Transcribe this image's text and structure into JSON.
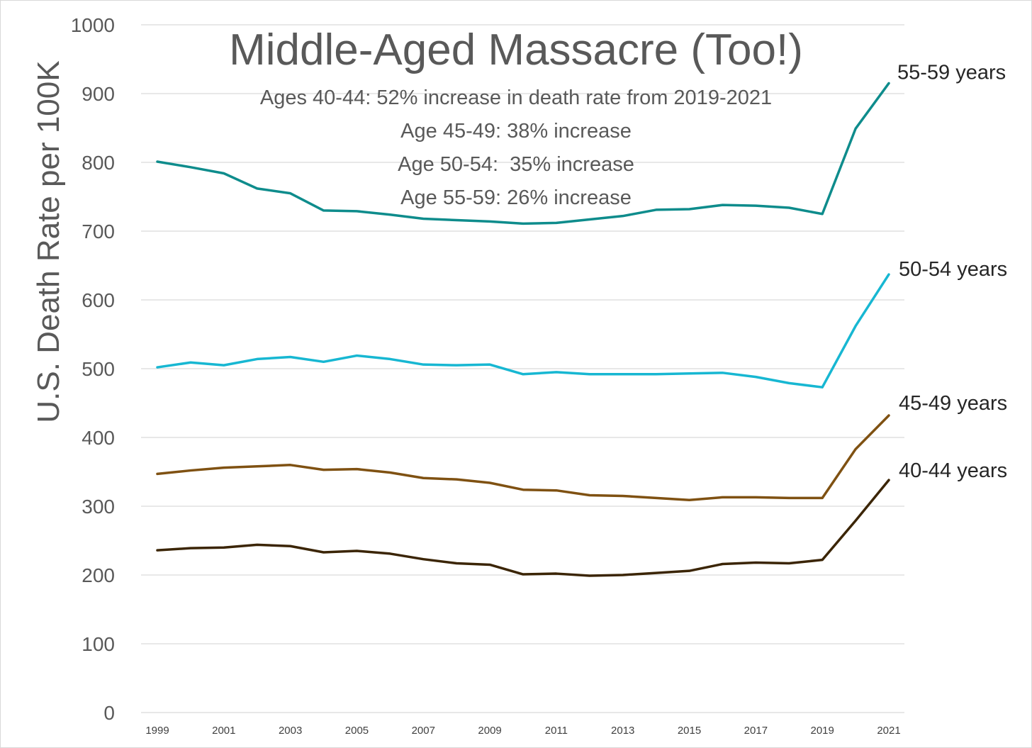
{
  "chart_data": {
    "type": "line",
    "title": "Middle-Aged Massacre (Too!)",
    "subtitle_lines": [
      "Ages 40-44: 52% increase in death rate from 2019-2021",
      "Age 45-49: 38% increase",
      "Age 50-54:  35% increase",
      "Age 55-59: 26% increase"
    ],
    "ylabel": "U.S. Death Rate per 100K",
    "xlabel": "",
    "ylim": [
      0,
      1000
    ],
    "y_ticks": [
      0,
      100,
      200,
      300,
      400,
      500,
      600,
      700,
      800,
      900,
      1000
    ],
    "grid": true,
    "legend": "inline labels at line ends (right)",
    "x": [
      1999,
      2000,
      2001,
      2002,
      2003,
      2004,
      2005,
      2006,
      2007,
      2008,
      2009,
      2010,
      2011,
      2012,
      2013,
      2014,
      2015,
      2016,
      2017,
      2018,
      2019,
      2020,
      2021
    ],
    "x_tick_labels": [
      "1999",
      "2001",
      "2003",
      "2005",
      "2007",
      "2009",
      "2011",
      "2013",
      "2015",
      "2017",
      "2019",
      "2021"
    ],
    "series": [
      {
        "name": "55-59 years",
        "color": "#0e8c8c",
        "values": [
          801,
          793,
          784,
          762,
          755,
          730,
          729,
          724,
          718,
          716,
          714,
          711,
          712,
          717,
          722,
          731,
          732,
          738,
          737,
          734,
          725,
          849,
          915
        ]
      },
      {
        "name": "50-54 years",
        "color": "#17b7d2",
        "values": [
          502,
          509,
          505,
          514,
          517,
          510,
          519,
          514,
          506,
          505,
          506,
          492,
          495,
          492,
          492,
          492,
          493,
          494,
          488,
          479,
          473,
          562,
          637
        ]
      },
      {
        "name": "45-49 years",
        "color": "#7f5112",
        "values": [
          347,
          352,
          356,
          358,
          360,
          353,
          354,
          349,
          341,
          339,
          334,
          324,
          323,
          316,
          315,
          312,
          309,
          313,
          313,
          312,
          312,
          383,
          432
        ]
      },
      {
        "name": "40-44 years",
        "color": "#3b2506",
        "values": [
          236,
          239,
          240,
          244,
          242,
          233,
          235,
          231,
          223,
          217,
          215,
          201,
          202,
          199,
          200,
          203,
          206,
          216,
          218,
          217,
          222,
          279,
          338
        ]
      }
    ]
  }
}
